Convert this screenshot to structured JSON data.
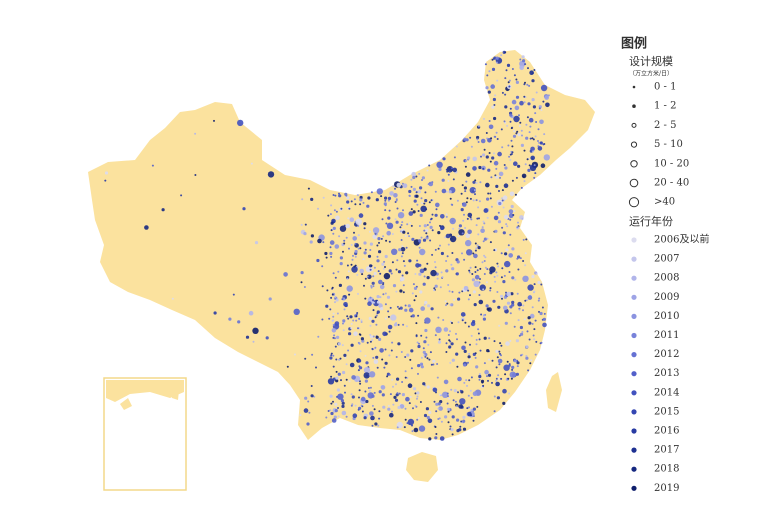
{
  "legend": {
    "title": "图例",
    "size_section": {
      "title": "设计规模",
      "unit": "（万立方米/日）",
      "items": [
        "0 - 1",
        "1 - 2",
        "2 - 5",
        "5 - 10",
        "10 - 20",
        "20 - 40",
        ">40"
      ]
    },
    "year_section": {
      "title": "运行年份",
      "items": [
        {
          "label": "2006及以前",
          "color": "#dcdcef"
        },
        {
          "label": "2007",
          "color": "#c4c6ec"
        },
        {
          "label": "2008",
          "color": "#b1b5ea"
        },
        {
          "label": "2009",
          "color": "#9ea4e6"
        },
        {
          "label": "2010",
          "color": "#8b93e0"
        },
        {
          "label": "2011",
          "color": "#7882da"
        },
        {
          "label": "2012",
          "color": "#6571d3"
        },
        {
          "label": "2013",
          "color": "#5260ca"
        },
        {
          "label": "2014",
          "color": "#4252bf"
        },
        {
          "label": "2015",
          "color": "#3446b2"
        },
        {
          "label": "2016",
          "color": "#283ba3"
        },
        {
          "label": "2017",
          "color": "#1e3192"
        },
        {
          "label": "2018",
          "color": "#162880"
        },
        {
          "label": "2019",
          "color": "#0f1f6c"
        }
      ]
    }
  }
}
